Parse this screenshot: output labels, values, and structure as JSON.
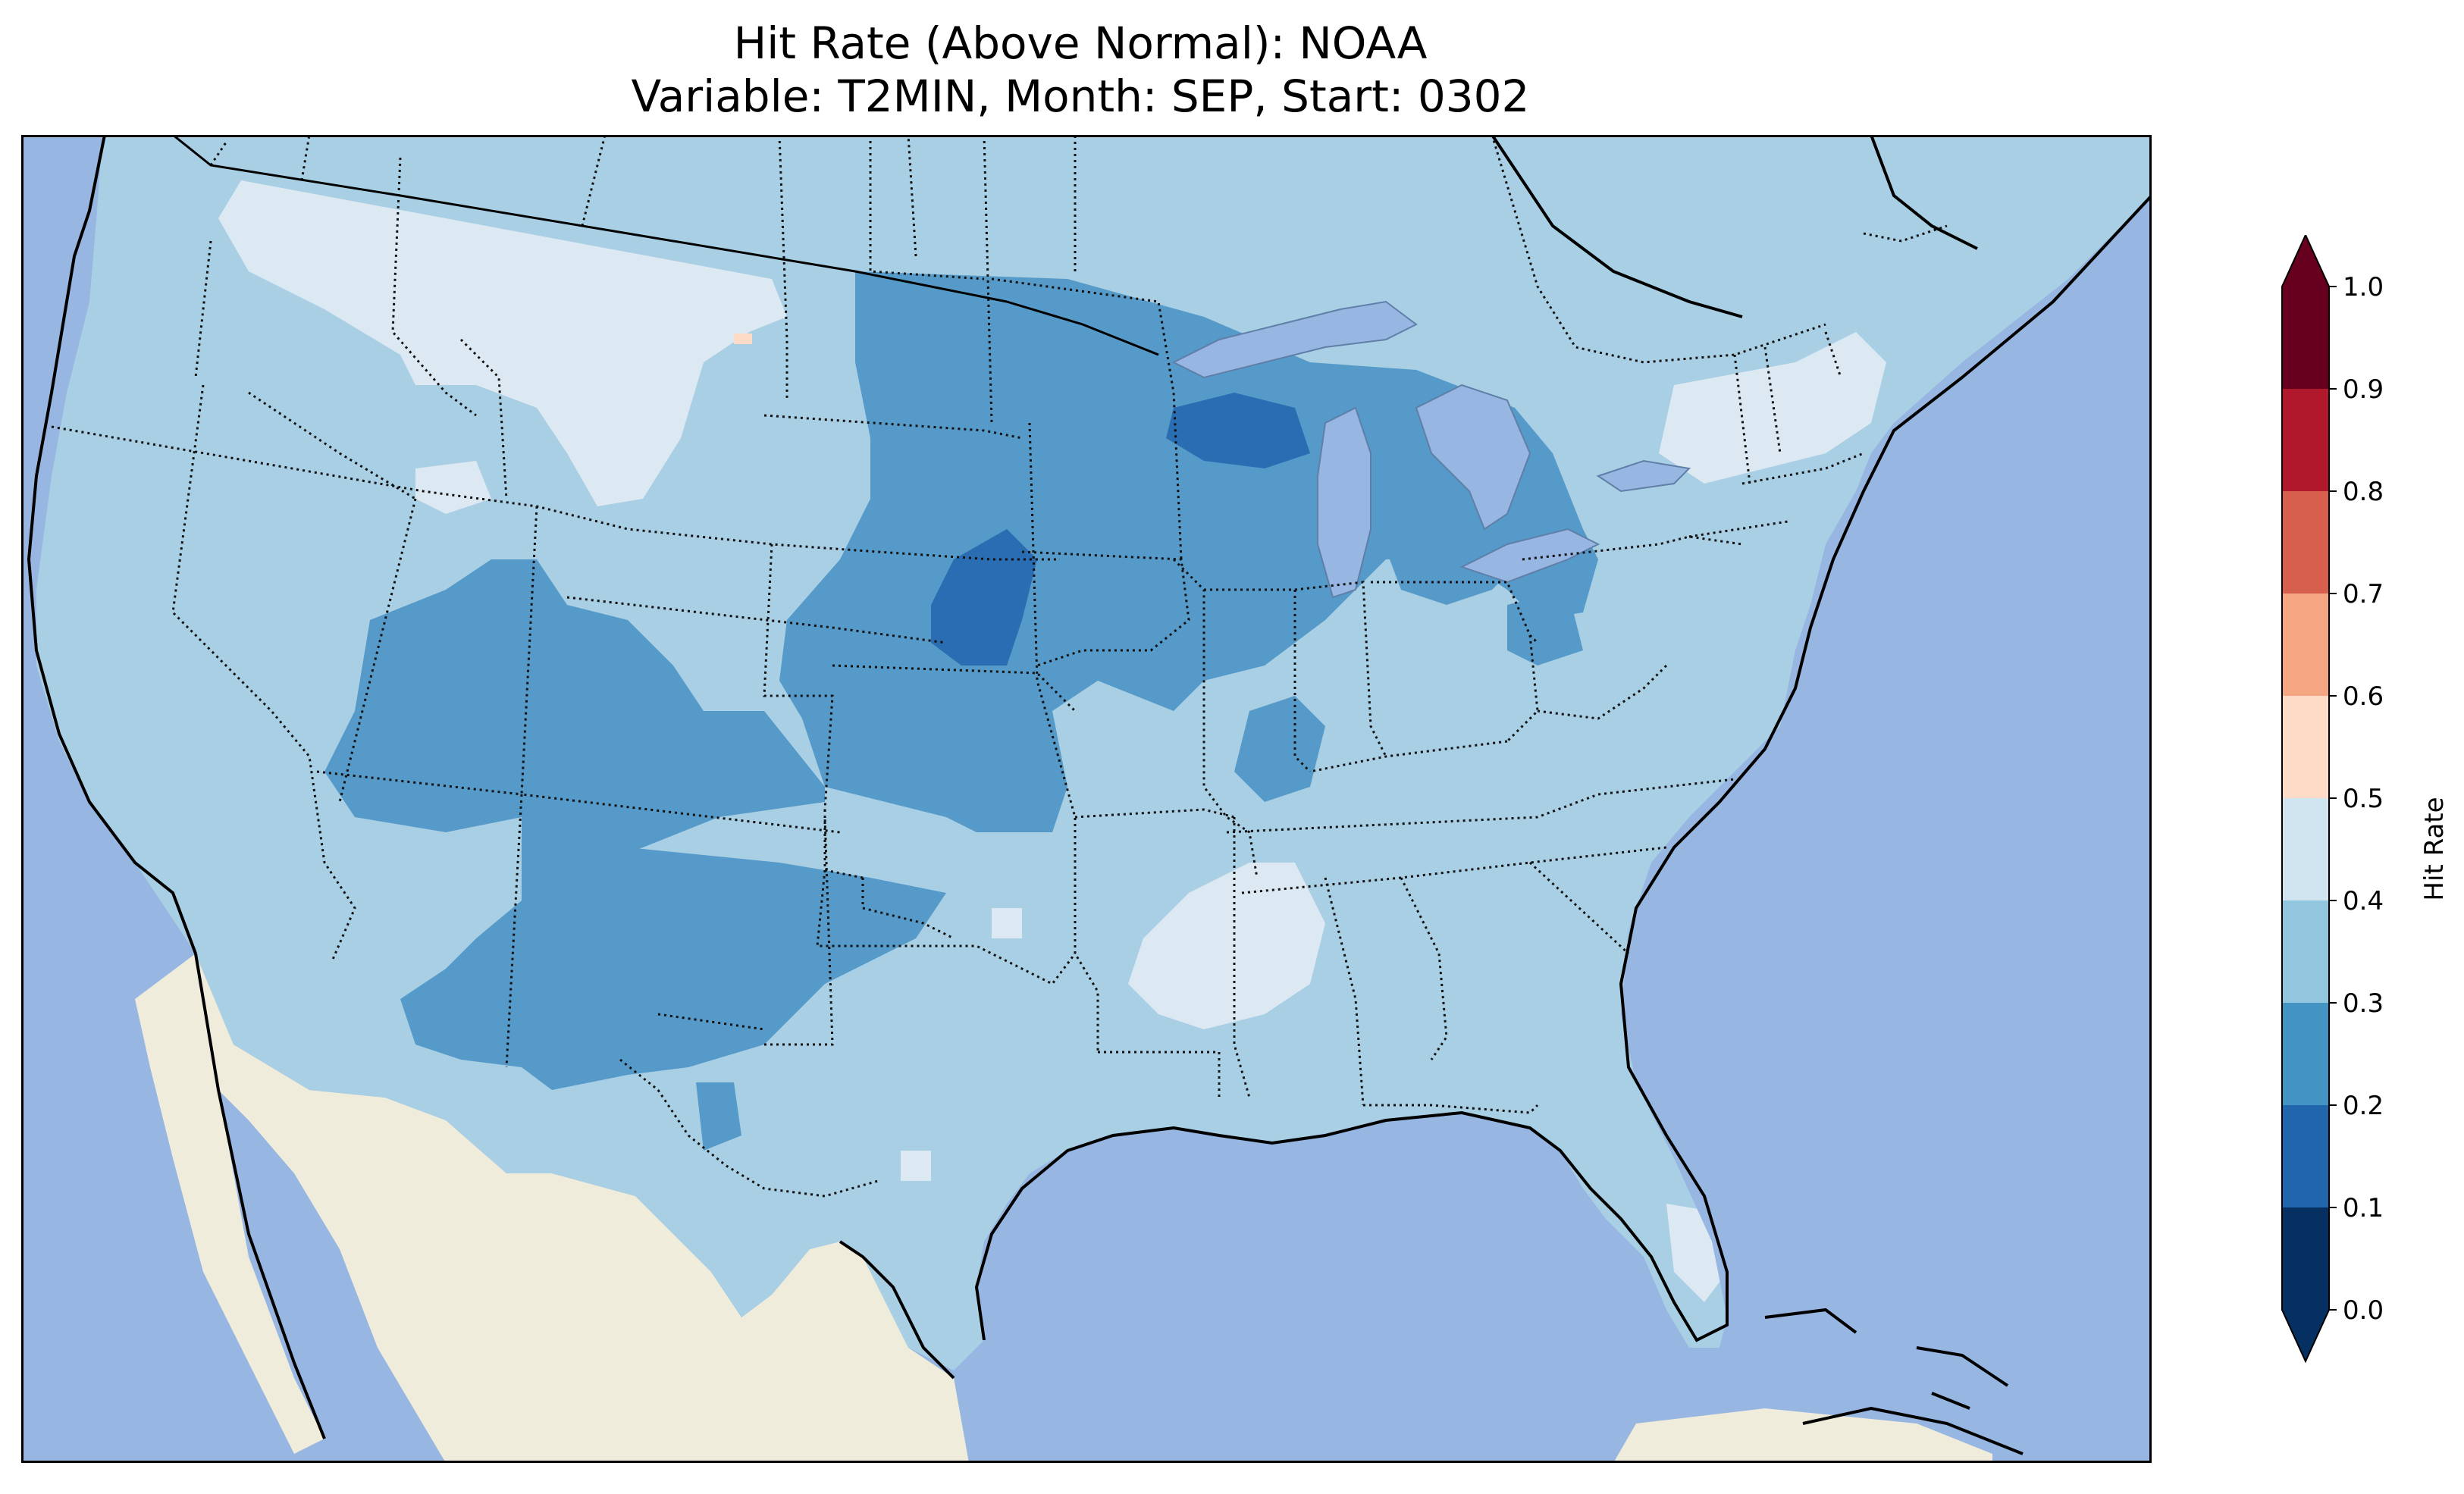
{
  "title": {
    "line1": "Hit Rate (Above Normal): NOAA",
    "line2": "Variable: T2MIN, Month: SEP, Start: 0302"
  },
  "colorbar": {
    "label": "Hit Rate",
    "ticks": [
      "0.0",
      "0.1",
      "0.2",
      "0.3",
      "0.4",
      "0.5",
      "0.6",
      "0.7",
      "0.8",
      "0.9",
      "1.0"
    ],
    "colors": [
      "#053061",
      "#2166ac",
      "#4393c3",
      "#92c5de",
      "#d1e5f0",
      "#fddbc7",
      "#f4a582",
      "#d6604d",
      "#b2182b",
      "#67001f"
    ],
    "under_color": "#053061",
    "over_color": "#67001f"
  },
  "map": {
    "region": "Continental United States",
    "ocean_color": "#97b6e1",
    "land_color": "#efecdc",
    "field": {
      "background_value_range": [
        0.3,
        0.4
      ],
      "regions": [
        {
          "name": "northern-plains-light",
          "range": [
            0.4,
            0.5
          ]
        },
        {
          "name": "dakotas-core",
          "range": [
            0.2,
            0.3
          ]
        },
        {
          "name": "rockies-core",
          "range": [
            0.2,
            0.3
          ]
        },
        {
          "name": "southwest-core",
          "range": [
            0.2,
            0.3
          ]
        },
        {
          "name": "nebraska-core",
          "range": [
            0.1,
            0.2
          ]
        },
        {
          "name": "wisconsin-core",
          "range": [
            0.1,
            0.2
          ]
        },
        {
          "name": "michigan-core",
          "range": [
            0.2,
            0.3
          ]
        },
        {
          "name": "arkansas-light",
          "range": [
            0.4,
            0.5
          ]
        },
        {
          "name": "new-england-light",
          "range": [
            0.4,
            0.5
          ]
        },
        {
          "name": "florida-light",
          "range": [
            0.4,
            0.5
          ]
        },
        {
          "name": "montana-spot",
          "range": [
            0.5,
            0.6
          ]
        }
      ]
    }
  }
}
